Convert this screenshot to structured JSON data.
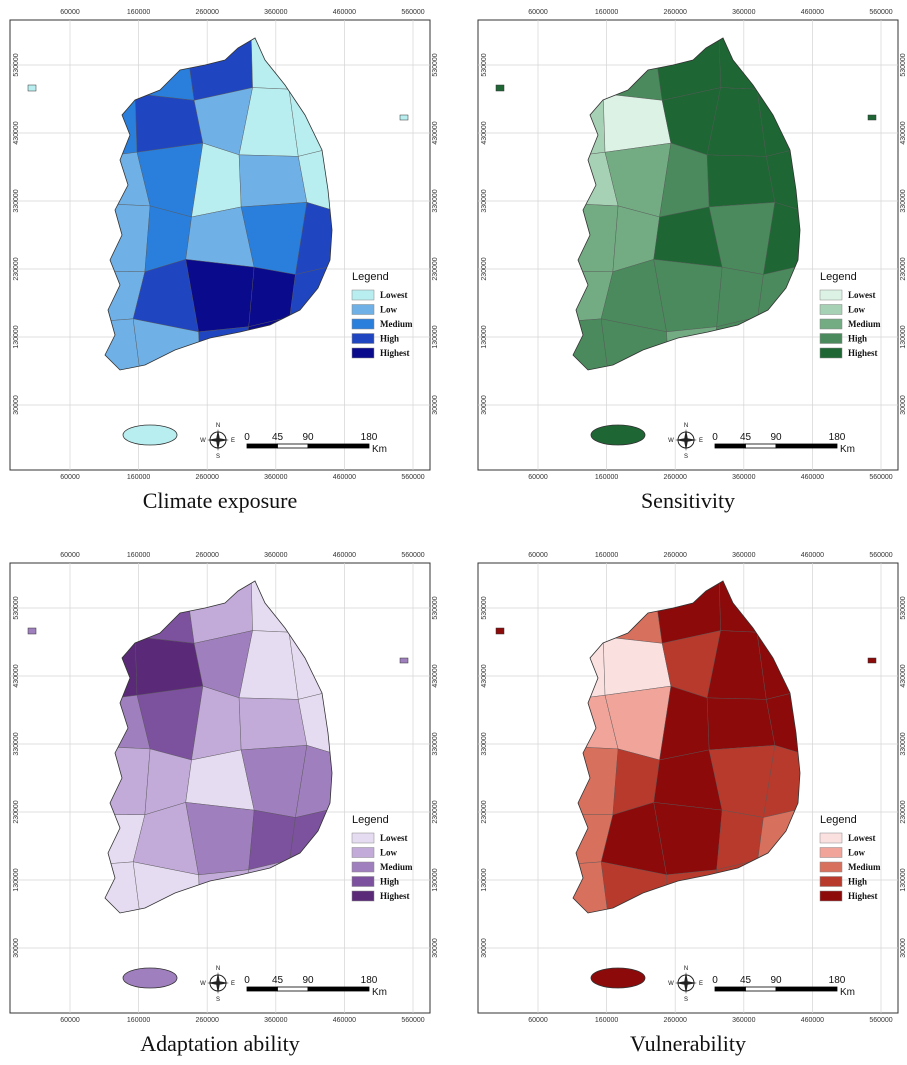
{
  "panels": [
    {
      "caption": "Climate exposure",
      "legend": {
        "title": "Legend",
        "items": [
          {
            "label": "Lowest",
            "color": "#b8eef0"
          },
          {
            "label": "Low",
            "color": "#6fb0e6"
          },
          {
            "label": "Medium",
            "color": "#2a7fdc"
          },
          {
            "label": "High",
            "color": "#2045c0"
          },
          {
            "label": "Highest",
            "color": "#0a0a8c"
          }
        ]
      }
    },
    {
      "caption": "Sensitivity",
      "legend": {
        "title": "Legend",
        "items": [
          {
            "label": "Lowest",
            "color": "#dcf2e4"
          },
          {
            "label": "Low",
            "color": "#a6d1b4"
          },
          {
            "label": "Medium",
            "color": "#73ab83"
          },
          {
            "label": "High",
            "color": "#4a8a5c"
          },
          {
            "label": "Highest",
            "color": "#1e6634"
          }
        ]
      }
    },
    {
      "caption": "Adaptation ability",
      "legend": {
        "title": "Legend",
        "items": [
          {
            "label": "Lowest",
            "color": "#e6dcf2"
          },
          {
            "label": "Low",
            "color": "#c2aad9"
          },
          {
            "label": "Medium",
            "color": "#a07fbe"
          },
          {
            "label": "High",
            "color": "#7c519e"
          },
          {
            "label": "Highest",
            "color": "#5a2a78"
          }
        ]
      }
    },
    {
      "caption": "Vulnerability",
      "legend": {
        "title": "Legend",
        "items": [
          {
            "label": "Lowest",
            "color": "#fbe0e0"
          },
          {
            "label": "Low",
            "color": "#f0a49a"
          },
          {
            "label": "Medium",
            "color": "#d8705e"
          },
          {
            "label": "High",
            "color": "#b83a2c"
          },
          {
            "label": "Highest",
            "color": "#8c0a0a"
          }
        ]
      }
    }
  ],
  "axes": {
    "xticks": [
      60000,
      160000,
      260000,
      360000,
      460000,
      560000
    ],
    "yticks": [
      530000,
      430000,
      330000,
      230000,
      130000,
      30000
    ]
  },
  "compass": {
    "n": "N",
    "s": "S",
    "e": "E",
    "w": "W"
  },
  "scale": {
    "ticks": [
      0,
      45,
      90,
      180
    ],
    "unit": "Km"
  }
}
